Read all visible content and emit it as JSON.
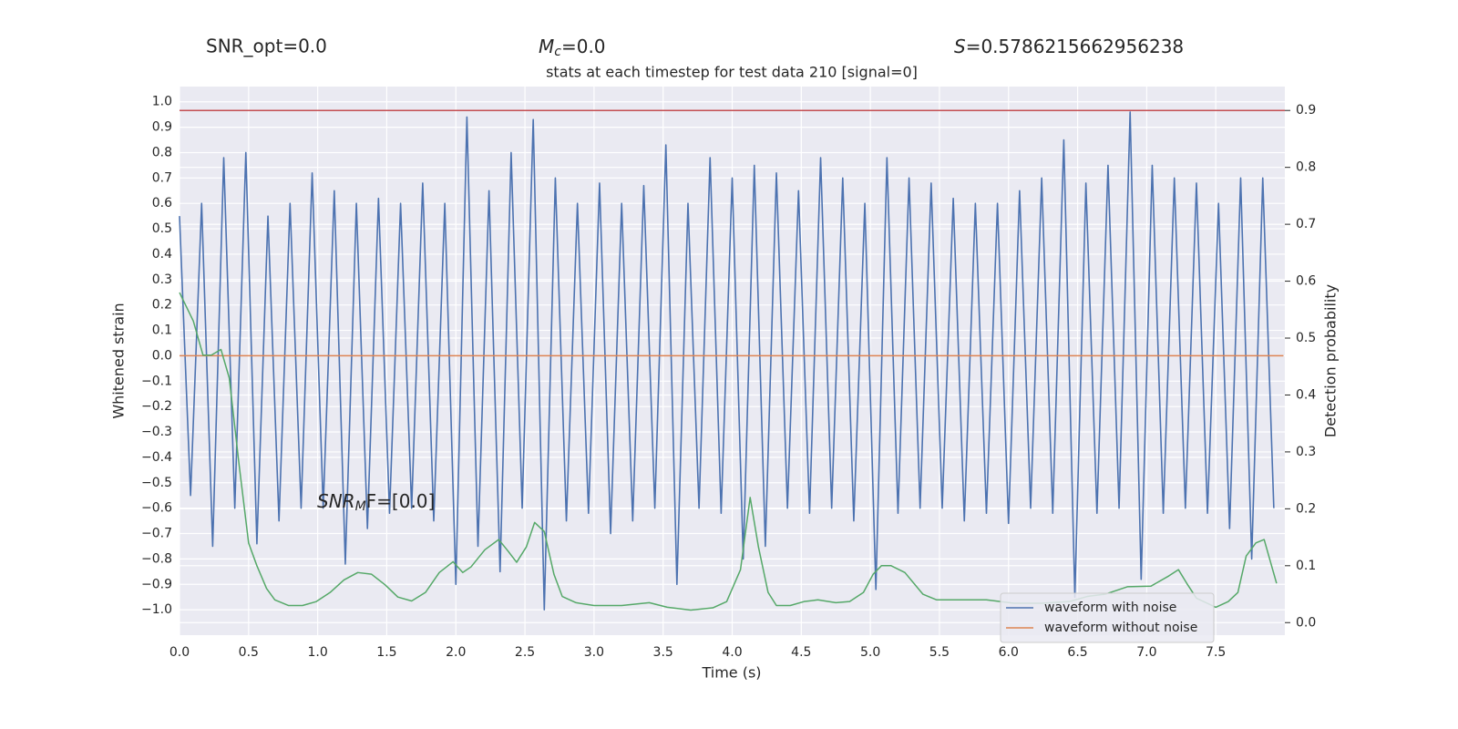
{
  "chart_data": {
    "type": "line",
    "title": "stats at each timestep for test data 210 [signal=0]",
    "header": {
      "snr_opt": "SNR_opt=0.0",
      "mc": {
        "symbol": "M",
        "sub": "c",
        "text": "=0.0"
      },
      "s": {
        "symbol": "S",
        "text": "=0.5786215662956238"
      }
    },
    "annotation": {
      "symbol": "SNR",
      "sub": "M",
      "text": "F=[0.0]"
    },
    "xlabel": "Time (s)",
    "ylabel": "Whitened strain",
    "y2label": "Detection probability",
    "xlim": [
      0,
      8
    ],
    "ylim": [
      -1.1,
      1.06
    ],
    "y2lim": [
      -0.022,
      0.942
    ],
    "xticks": [
      {
        "value": 0,
        "label": "0.0"
      },
      0.5,
      {
        "value": 1,
        "label": "1.0"
      },
      1.5,
      {
        "value": 2,
        "label": "2.0"
      },
      2.5,
      {
        "value": 3,
        "label": "3.0"
      },
      3.5,
      {
        "value": 4,
        "label": "4.0"
      },
      4.5,
      {
        "value": 5,
        "label": "5.0"
      },
      5.5,
      {
        "value": 6,
        "label": "6.0"
      },
      6.5,
      {
        "value": 7,
        "label": "7.0"
      },
      7.5
    ],
    "yticks": [
      {
        "value": -1,
        "label": "−1.0"
      },
      {
        "value": -0.9,
        "label": "−0.9"
      },
      {
        "value": -0.8,
        "label": "−0.8"
      },
      {
        "value": -0.7,
        "label": "−0.7"
      },
      {
        "value": -0.6,
        "label": "−0.6"
      },
      {
        "value": -0.5,
        "label": "−0.5"
      },
      {
        "value": -0.4,
        "label": "−0.4"
      },
      {
        "value": -0.3,
        "label": "−0.3"
      },
      {
        "value": -0.2,
        "label": "−0.2"
      },
      {
        "value": -0.1,
        "label": "−0.1"
      },
      {
        "value": 0,
        "label": "0.0"
      },
      0.1,
      0.2,
      0.3,
      0.4,
      0.5,
      0.6,
      0.7,
      0.8,
      0.9,
      {
        "value": 1,
        "label": "1.0"
      }
    ],
    "y2ticks": [
      {
        "value": 0,
        "label": "0.0"
      },
      0.1,
      0.2,
      0.3,
      0.4,
      0.5,
      0.6,
      0.7,
      0.8,
      0.9
    ],
    "grid": true,
    "legend": "lower right",
    "series": [
      {
        "name": "waveform with noise",
        "color": "#4c72b0",
        "x": [
          0,
          0.08,
          0.16,
          0.24,
          0.32,
          0.4,
          0.48,
          0.56,
          0.64,
          0.72,
          0.8,
          0.88,
          0.96,
          1.04,
          1.12,
          1.2,
          1.28,
          1.36,
          1.44,
          1.52,
          1.6,
          1.68,
          1.76,
          1.84,
          1.92,
          2,
          2.08,
          2.16,
          2.24,
          2.32,
          2.4,
          2.48,
          2.56,
          2.64,
          2.72,
          2.8,
          2.88,
          2.96,
          3.04,
          3.12,
          3.2,
          3.28,
          3.36,
          3.44,
          3.52,
          3.6,
          3.68,
          3.76,
          3.84,
          3.92,
          4,
          4.08,
          4.16,
          4.24,
          4.32,
          4.4,
          4.48,
          4.56,
          4.64,
          4.72,
          4.8,
          4.88,
          4.96,
          5.04,
          5.12,
          5.2,
          5.28,
          5.36,
          5.44,
          5.52,
          5.6,
          5.68,
          5.76,
          5.84,
          5.92,
          6,
          6.08,
          6.16,
          6.24,
          6.32,
          6.4,
          6.48,
          6.56,
          6.64,
          6.72,
          6.8,
          6.88,
          6.96,
          7.04,
          7.12,
          7.2,
          7.28,
          7.36,
          7.44,
          7.52,
          7.6,
          7.68,
          7.76,
          7.84,
          7.92
        ],
        "values": [
          0.55,
          -0.55,
          0.6,
          -0.75,
          0.78,
          -0.6,
          0.8,
          -0.74,
          0.55,
          -0.65,
          0.6,
          -0.6,
          0.72,
          -0.6,
          0.65,
          -0.82,
          0.6,
          -0.68,
          0.62,
          -0.62,
          0.6,
          -0.6,
          0.68,
          -0.65,
          0.6,
          -0.9,
          0.94,
          -0.75,
          0.65,
          -0.85,
          0.8,
          -0.6,
          0.93,
          -1.0,
          0.7,
          -0.65,
          0.6,
          -0.62,
          0.68,
          -0.7,
          0.6,
          -0.65,
          0.67,
          -0.6,
          0.83,
          -0.9,
          0.6,
          -0.6,
          0.78,
          -0.62,
          0.7,
          -0.8,
          0.75,
          -0.75,
          0.72,
          -0.6,
          0.65,
          -0.62,
          0.78,
          -0.6,
          0.7,
          -0.65,
          0.6,
          -0.92,
          0.78,
          -0.62,
          0.7,
          -0.6,
          0.68,
          -0.6,
          0.62,
          -0.65,
          0.6,
          -0.62,
          0.6,
          -0.66,
          0.65,
          -0.6,
          0.7,
          -0.62,
          0.85,
          -0.95,
          0.68,
          -0.62,
          0.75,
          -0.6,
          0.96,
          -0.88,
          0.75,
          -0.62,
          0.7,
          -0.6,
          0.68,
          -0.62,
          0.6,
          -0.68,
          0.7,
          -0.8,
          0.7,
          -0.6
        ]
      },
      {
        "name": "waveform without noise",
        "color": "#dd8452",
        "x": [
          0,
          7.99
        ],
        "values": [
          0,
          0
        ]
      },
      {
        "color": "#55a868",
        "axis": "y2",
        "x": [
          0,
          0.1,
          0.17,
          0.23,
          0.3,
          0.36,
          0.43,
          0.5,
          0.56,
          0.63,
          0.69,
          0.79,
          0.89,
          0.99,
          1.09,
          1.19,
          1.29,
          1.39,
          1.49,
          1.58,
          1.68,
          1.78,
          1.88,
          1.98,
          2.05,
          2.11,
          2.21,
          2.31,
          2.38,
          2.44,
          2.51,
          2.57,
          2.64,
          2.71,
          2.77,
          2.87,
          3.0,
          3.2,
          3.4,
          3.53,
          3.7,
          3.86,
          3.96,
          4.06,
          4.13,
          4.19,
          4.26,
          4.32,
          4.42,
          4.52,
          4.62,
          4.75,
          4.85,
          4.95,
          5.02,
          5.08,
          5.15,
          5.25,
          5.38,
          5.48,
          5.61,
          5.84,
          6.04,
          6.24,
          6.44,
          6.57,
          6.7,
          6.86,
          7.03,
          7.16,
          7.23,
          7.29,
          7.36,
          7.5,
          7.59,
          7.66,
          7.72,
          7.79,
          7.85,
          7.94
        ],
        "values": [
          0.58,
          0.53,
          0.47,
          0.47,
          0.48,
          0.43,
          0.28,
          0.14,
          0.1,
          0.06,
          0.04,
          0.03,
          0.03,
          0.037,
          0.053,
          0.075,
          0.088,
          0.085,
          0.066,
          0.045,
          0.038,
          0.053,
          0.088,
          0.107,
          0.088,
          0.098,
          0.128,
          0.146,
          0.125,
          0.106,
          0.133,
          0.176,
          0.16,
          0.085,
          0.046,
          0.035,
          0.03,
          0.03,
          0.035,
          0.027,
          0.022,
          0.026,
          0.037,
          0.093,
          0.22,
          0.133,
          0.053,
          0.03,
          0.03,
          0.037,
          0.04,
          0.035,
          0.037,
          0.053,
          0.085,
          0.1,
          0.1,
          0.088,
          0.05,
          0.04,
          0.04,
          0.04,
          0.034,
          0.034,
          0.037,
          0.046,
          0.05,
          0.063,
          0.064,
          0.082,
          0.093,
          0.069,
          0.043,
          0.027,
          0.037,
          0.053,
          0.117,
          0.14,
          0.146,
          0.069
        ]
      },
      {
        "color": "#c44e52",
        "axis": "y2",
        "x": [
          0,
          8
        ],
        "values": [
          0.9,
          0.9
        ]
      }
    ]
  }
}
